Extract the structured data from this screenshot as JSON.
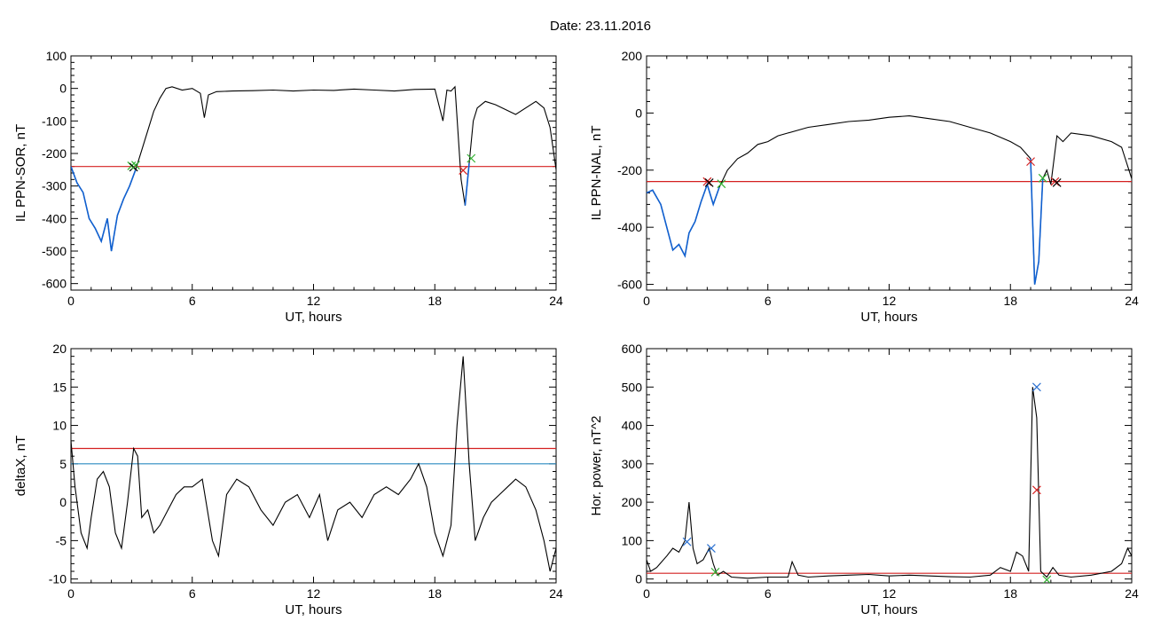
{
  "figure": {
    "title": "Date:  23.11.2016"
  },
  "colors": {
    "trace": "#000000",
    "highlight": "#1060d0",
    "red": "#d42020",
    "cyan": "#2a8ac0",
    "green": "#30b030",
    "blue_marker": "#2a70d0"
  },
  "chart_data": [
    {
      "type": "line",
      "xlabel": "UT, hours",
      "ylabel": "IL PPN-SOR, nT",
      "xlim": [
        0,
        24
      ],
      "ylim": [
        -620,
        100
      ],
      "xticks": [
        0,
        6,
        12,
        18,
        24
      ],
      "yticks": [
        100,
        0,
        -100,
        -200,
        -300,
        -400,
        -500,
        -600
      ],
      "x": [
        0,
        0.3,
        0.6,
        0.9,
        1.2,
        1.5,
        1.8,
        2.0,
        2.3,
        2.6,
        2.9,
        3.2,
        3.5,
        3.8,
        4.1,
        4.4,
        4.7,
        5.0,
        5.5,
        6.0,
        6.4,
        6.6,
        6.8,
        7.2,
        8,
        9,
        10,
        11,
        12,
        13,
        14,
        15,
        16,
        17,
        18,
        18.4,
        18.6,
        18.8,
        19,
        19.3,
        19.5,
        19.7,
        19.9,
        20.1,
        20.5,
        21,
        22,
        23,
        23.4,
        23.7,
        24
      ],
      "values": [
        -240,
        -290,
        -320,
        -400,
        -430,
        -470,
        -400,
        -500,
        -390,
        -340,
        -300,
        -250,
        -190,
        -130,
        -70,
        -30,
        0,
        5,
        -5,
        0,
        -15,
        -90,
        -20,
        -10,
        -8,
        -7,
        -5,
        -8,
        -5,
        -6,
        -2,
        -5,
        -8,
        -3,
        -2,
        -100,
        -5,
        -8,
        5,
        -280,
        -360,
        -230,
        -100,
        -60,
        -40,
        -50,
        -80,
        -40,
        -60,
        -120,
        -250
      ],
      "highlight_ranges": [
        [
          0,
          3.2
        ],
        [
          19.5,
          19.7
        ]
      ],
      "threshold": {
        "value": -240
      },
      "markers": [
        {
          "x": 3.0,
          "y": -238,
          "color": "green"
        },
        {
          "x": 3.1,
          "y": -242,
          "color": "black"
        },
        {
          "x": 3.2,
          "y": -236,
          "color": "green"
        },
        {
          "x": 19.4,
          "y": -252,
          "color": "red"
        },
        {
          "x": 19.8,
          "y": -215,
          "color": "green"
        }
      ]
    },
    {
      "type": "line",
      "xlabel": "UT, hours",
      "ylabel": "IL PPN-NAL, nT",
      "xlim": [
        0,
        24
      ],
      "ylim": [
        -620,
        200
      ],
      "xticks": [
        0,
        6,
        12,
        18,
        24
      ],
      "yticks": [
        200,
        0,
        -200,
        -400,
        -600
      ],
      "x": [
        0,
        0.3,
        0.7,
        1.0,
        1.3,
        1.6,
        1.9,
        2.1,
        2.4,
        2.7,
        3.0,
        3.3,
        3.6,
        4.0,
        4.5,
        5.0,
        5.5,
        6.0,
        6.5,
        7,
        8,
        9,
        10,
        11,
        12,
        13,
        14,
        15,
        16,
        17,
        18,
        18.5,
        19.0,
        19.2,
        19.4,
        19.6,
        19.8,
        20.0,
        20.3,
        20.6,
        21,
        22,
        23,
        23.5,
        24
      ],
      "values": [
        -280,
        -270,
        -320,
        -400,
        -480,
        -460,
        -500,
        -420,
        -380,
        -310,
        -250,
        -320,
        -260,
        -200,
        -160,
        -140,
        -110,
        -100,
        -80,
        -70,
        -50,
        -40,
        -30,
        -25,
        -15,
        -10,
        -20,
        -30,
        -50,
        -70,
        -100,
        -120,
        -160,
        -600,
        -520,
        -230,
        -200,
        -250,
        -80,
        -100,
        -70,
        -80,
        -100,
        -120,
        -230
      ],
      "highlight_ranges": [
        [
          0,
          3.7
        ],
        [
          19.0,
          19.7
        ]
      ],
      "threshold": {
        "value": -240
      },
      "markers": [
        {
          "x": 3.0,
          "y": -240,
          "color": "red"
        },
        {
          "x": 3.1,
          "y": -244,
          "color": "black"
        },
        {
          "x": 3.7,
          "y": -248,
          "color": "green"
        },
        {
          "x": 19.0,
          "y": -170,
          "color": "red"
        },
        {
          "x": 19.6,
          "y": -228,
          "color": "green"
        },
        {
          "x": 20.2,
          "y": -240,
          "color": "red"
        },
        {
          "x": 20.3,
          "y": -244,
          "color": "black"
        }
      ]
    },
    {
      "type": "line",
      "xlabel": "UT, hours",
      "ylabel": "deltaX, nT",
      "xlim": [
        0,
        24
      ],
      "ylim": [
        -10.5,
        20
      ],
      "xticks": [
        0,
        6,
        12,
        18,
        24
      ],
      "yticks": [
        20,
        15,
        10,
        5,
        0,
        -5,
        -10
      ],
      "x": [
        0,
        0.2,
        0.5,
        0.8,
        1.0,
        1.3,
        1.6,
        1.9,
        2.2,
        2.5,
        2.8,
        3.1,
        3.3,
        3.5,
        3.8,
        4.1,
        4.4,
        4.8,
        5.2,
        5.6,
        6.0,
        6.5,
        7.0,
        7.3,
        7.7,
        8.2,
        8.8,
        9.4,
        10.0,
        10.6,
        11.2,
        11.8,
        12.3,
        12.7,
        13.2,
        13.8,
        14.4,
        15.0,
        15.6,
        16.2,
        16.8,
        17.2,
        17.6,
        18.0,
        18.4,
        18.8,
        19.1,
        19.4,
        19.7,
        20.0,
        20.4,
        20.8,
        21.2,
        21.6,
        22.0,
        22.5,
        23.0,
        23.4,
        23.7,
        24
      ],
      "values": [
        8,
        2,
        -4,
        -6,
        -2,
        3,
        4,
        2,
        -4,
        -6,
        0,
        7,
        6,
        -2,
        -1,
        -4,
        -3,
        -1,
        1,
        2,
        2,
        3,
        -5,
        -7,
        1,
        3,
        2,
        -1,
        -3,
        0,
        1,
        -2,
        1,
        -5,
        -1,
        0,
        -2,
        1,
        2,
        1,
        3,
        5,
        2,
        -4,
        -7,
        -3,
        10,
        19,
        5,
        -5,
        -2,
        0,
        1,
        2,
        3,
        2,
        -1,
        -5,
        -9,
        -6
      ],
      "thresholds": [
        {
          "value": 7,
          "color": "red"
        },
        {
          "value": 5,
          "color": "cyan"
        }
      ]
    },
    {
      "type": "line",
      "xlabel": "UT, hours",
      "ylabel": "Hor. power, nT^2",
      "xlim": [
        0,
        24
      ],
      "ylim": [
        -10,
        600
      ],
      "xticks": [
        0,
        6,
        12,
        18,
        24
      ],
      "yticks": [
        600,
        500,
        400,
        300,
        200,
        100,
        0
      ],
      "x": [
        0,
        0.2,
        0.5,
        1.0,
        1.3,
        1.6,
        1.9,
        2.1,
        2.3,
        2.5,
        2.8,
        3.1,
        3.3,
        3.5,
        3.8,
        4.2,
        5,
        6,
        7,
        7.2,
        7.5,
        8,
        9,
        10,
        11,
        12,
        13,
        14,
        15,
        16,
        17,
        17.5,
        18,
        18.3,
        18.6,
        18.9,
        19.1,
        19.3,
        19.5,
        19.8,
        20.1,
        20.4,
        21,
        22,
        23,
        23.5,
        23.8,
        24
      ],
      "values": [
        50,
        20,
        30,
        60,
        80,
        70,
        100,
        200,
        80,
        40,
        50,
        80,
        40,
        10,
        20,
        5,
        2,
        5,
        5,
        45,
        10,
        5,
        8,
        10,
        12,
        8,
        10,
        8,
        6,
        5,
        10,
        30,
        20,
        70,
        60,
        20,
        500,
        420,
        20,
        5,
        30,
        10,
        5,
        10,
        20,
        40,
        80,
        60
      ],
      "threshold": {
        "value": 15
      },
      "markers": [
        {
          "x": 2.0,
          "y": 97,
          "color": "blue_marker"
        },
        {
          "x": 3.2,
          "y": 80,
          "color": "blue_marker"
        },
        {
          "x": 3.4,
          "y": 18,
          "color": "green"
        },
        {
          "x": 19.3,
          "y": 500,
          "color": "blue_marker"
        },
        {
          "x": 19.3,
          "y": 232,
          "color": "red"
        },
        {
          "x": 19.8,
          "y": -2,
          "color": "green"
        }
      ]
    }
  ]
}
